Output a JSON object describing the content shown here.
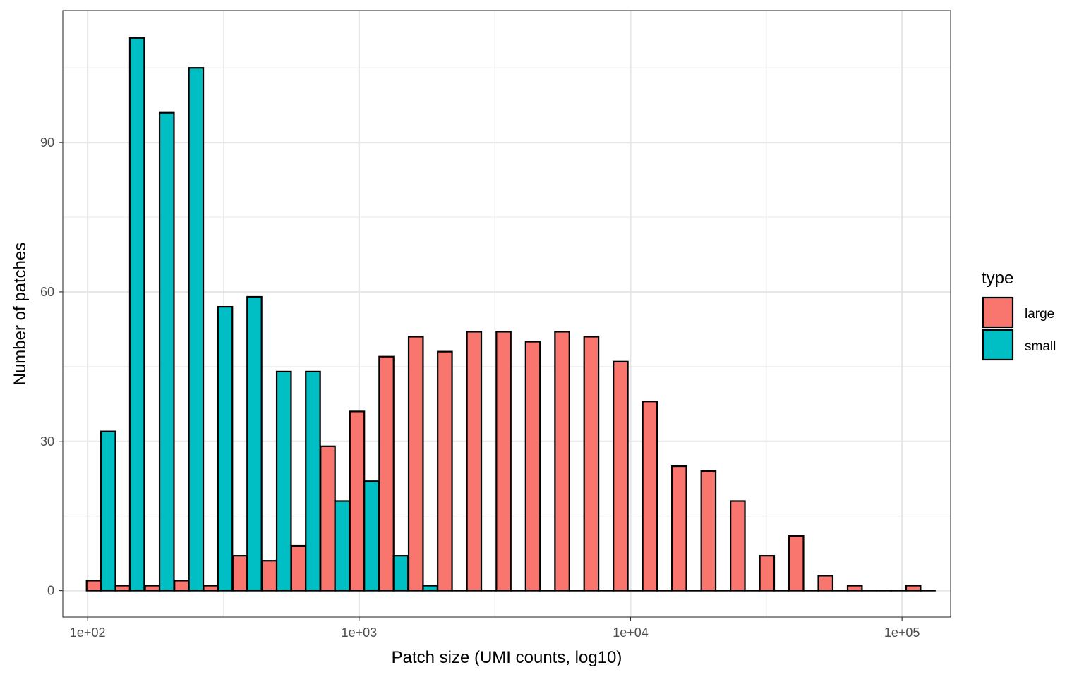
{
  "chart_data": {
    "type": "bar",
    "xlabel": "Patch size (UMI counts, log10)",
    "ylabel": "Number of patches",
    "x_scale": "log10",
    "xlim": [
      81,
      151000
    ],
    "ylim": [
      -5.3,
      116.5
    ],
    "x_ticks": [
      100,
      1000,
      10000,
      100000
    ],
    "x_tick_labels": [
      "1e+02",
      "1e+03",
      "1e+04",
      "1e+05"
    ],
    "y_ticks": [
      0,
      30,
      60,
      90
    ],
    "y_tick_labels": [
      "0",
      "30",
      "60",
      "90"
    ],
    "grid": true,
    "legend": {
      "title": "type",
      "position": "right"
    },
    "bin_centers": [
      112,
      143,
      184,
      236,
      302,
      387,
      497,
      636,
      815,
      1045,
      1340,
      1720,
      2200,
      2820,
      3620,
      4640,
      5950,
      7620,
      9770,
      12520,
      16050,
      20580,
      26380,
      33810,
      43340,
      55550,
      71200,
      91260,
      117000
    ],
    "series": [
      {
        "name": "large",
        "color": "#F8766D",
        "values": [
          2,
          1,
          1,
          2,
          1,
          7,
          6,
          9,
          29,
          36,
          47,
          51,
          48,
          52,
          52,
          50,
          52,
          51,
          46,
          38,
          25,
          24,
          18,
          7,
          11,
          3,
          1,
          0,
          1
        ]
      },
      {
        "name": "small",
        "color": "#00BFC4",
        "values": [
          32,
          111,
          96,
          105,
          57,
          59,
          44,
          44,
          18,
          22,
          7,
          1,
          0,
          0,
          0,
          0,
          0,
          0,
          0,
          0,
          0,
          0,
          0,
          0,
          0,
          0,
          0,
          0,
          0
        ]
      }
    ]
  }
}
